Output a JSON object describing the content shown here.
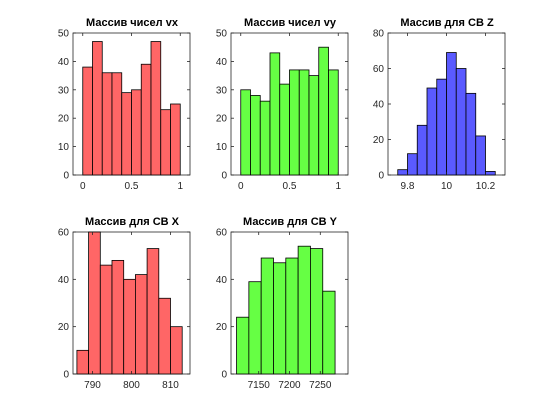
{
  "chart_data": [
    {
      "type": "bar",
      "title": "Массив чисел vx",
      "xlabel": "",
      "ylabel": "",
      "color": "#ff6666",
      "edges": [
        0,
        0.1,
        0.2,
        0.3,
        0.4,
        0.5,
        0.6,
        0.7,
        0.8,
        0.9,
        1.0
      ],
      "values": [
        38,
        47,
        36,
        36,
        29,
        30,
        39,
        47,
        23,
        25
      ],
      "xlim": [
        -0.1,
        1.1
      ],
      "ylim": [
        0,
        50
      ],
      "xticks": [
        0,
        0.5,
        1
      ],
      "xtick_labels": [
        "0",
        "0.5",
        "1"
      ],
      "yticks": [
        0,
        10,
        20,
        30,
        40,
        50
      ],
      "ytick_labels": [
        "0",
        "10",
        "20",
        "30",
        "40",
        "50"
      ]
    },
    {
      "type": "bar",
      "title": "Массив чисел vy",
      "xlabel": "",
      "ylabel": "",
      "color": "#66ff44",
      "edges": [
        0,
        0.1,
        0.2,
        0.3,
        0.4,
        0.5,
        0.6,
        0.7,
        0.8,
        0.9,
        1.0
      ],
      "values": [
        30,
        28,
        26,
        43,
        32,
        37,
        37,
        35,
        45,
        37
      ],
      "xlim": [
        -0.1,
        1.1
      ],
      "ylim": [
        0,
        50
      ],
      "xticks": [
        0,
        0.5,
        1
      ],
      "xtick_labels": [
        "0",
        "0.5",
        "1"
      ],
      "yticks": [
        0,
        10,
        20,
        30,
        40,
        50
      ],
      "ytick_labels": [
        "0",
        "10",
        "20",
        "30",
        "40",
        "50"
      ]
    },
    {
      "type": "bar",
      "title": "Массив для СВ Z",
      "xlabel": "",
      "ylabel": "",
      "color": "#5a5aff",
      "edges": [
        9.75,
        9.8,
        9.85,
        9.9,
        9.95,
        10.0,
        10.05,
        10.1,
        10.15,
        10.2,
        10.25
      ],
      "values": [
        3,
        12,
        28,
        49,
        54,
        69,
        60,
        46,
        22,
        2
      ],
      "xlim": [
        9.7,
        10.3
      ],
      "ylim": [
        0,
        80
      ],
      "xticks": [
        9.8,
        10,
        10.2
      ],
      "xtick_labels": [
        "9.8",
        "10",
        "10.2"
      ],
      "yticks": [
        0,
        20,
        40,
        60,
        80
      ],
      "ytick_labels": [
        "0",
        "20",
        "40",
        "60",
        "80"
      ]
    },
    {
      "type": "bar",
      "title": "Массив для СВ X",
      "xlabel": "",
      "ylabel": "",
      "color": "#ff6666",
      "edges": [
        786,
        789,
        792,
        795,
        798,
        801,
        804,
        807,
        810,
        813
      ],
      "values": [
        10,
        60,
        46,
        48,
        40,
        42,
        53,
        32,
        20
      ],
      "xlim": [
        785,
        815
      ],
      "ylim": [
        0,
        60
      ],
      "xticks": [
        790,
        800,
        810
      ],
      "xtick_labels": [
        "790",
        "800",
        "810"
      ],
      "yticks": [
        0,
        20,
        40,
        60
      ],
      "ytick_labels": [
        "0",
        "20",
        "40",
        "60"
      ]
    },
    {
      "type": "bar",
      "title": "Массив для СВ Y",
      "xlabel": "",
      "ylabel": "",
      "color": "#66ff44",
      "edges": [
        7114,
        7134,
        7154,
        7174,
        7194,
        7214,
        7234,
        7254,
        7274
      ],
      "values": [
        24,
        39,
        49,
        47,
        49,
        54,
        53,
        35
      ],
      "xlim": [
        7105,
        7295
      ],
      "ylim": [
        0,
        60
      ],
      "xticks": [
        7150,
        7200,
        7250
      ],
      "xtick_labels": [
        "7150",
        "7200",
        "7250"
      ],
      "yticks": [
        0,
        20,
        40,
        60
      ],
      "ytick_labels": [
        "0",
        "20",
        "40",
        "60"
      ]
    }
  ]
}
